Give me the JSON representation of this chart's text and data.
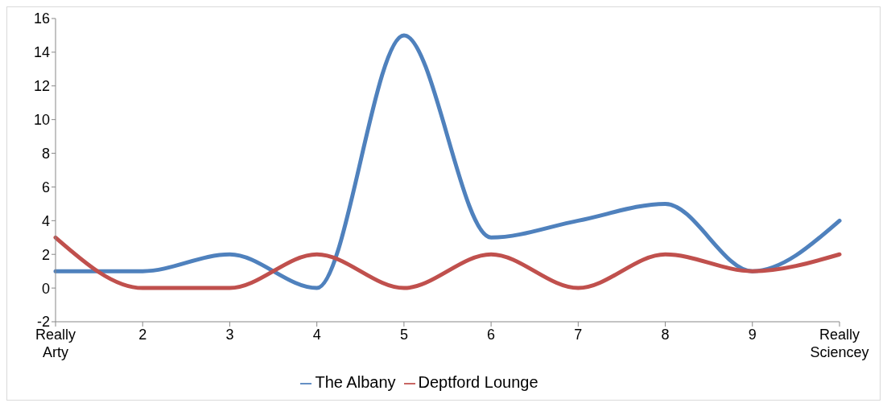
{
  "chart_data": {
    "type": "line",
    "categories": [
      "Really Arty",
      "2",
      "3",
      "4",
      "5",
      "6",
      "7",
      "8",
      "9",
      "Really Sciencey"
    ],
    "series": [
      {
        "name": "The Albany",
        "color": "#4f81bd",
        "values": [
          1,
          1,
          2,
          0,
          15,
          3,
          4,
          5,
          1,
          4
        ]
      },
      {
        "name": "Deptford Lounge",
        "color": "#c0504d",
        "values": [
          3,
          0,
          0,
          2,
          0,
          2,
          0,
          2,
          1,
          2
        ]
      }
    ],
    "ylim": [
      -2,
      16
    ],
    "yticks": [
      -2,
      0,
      2,
      4,
      6,
      8,
      10,
      12,
      14,
      16
    ],
    "grid": false,
    "legend": "bottom",
    "marker": "none",
    "line_style": "solid"
  }
}
